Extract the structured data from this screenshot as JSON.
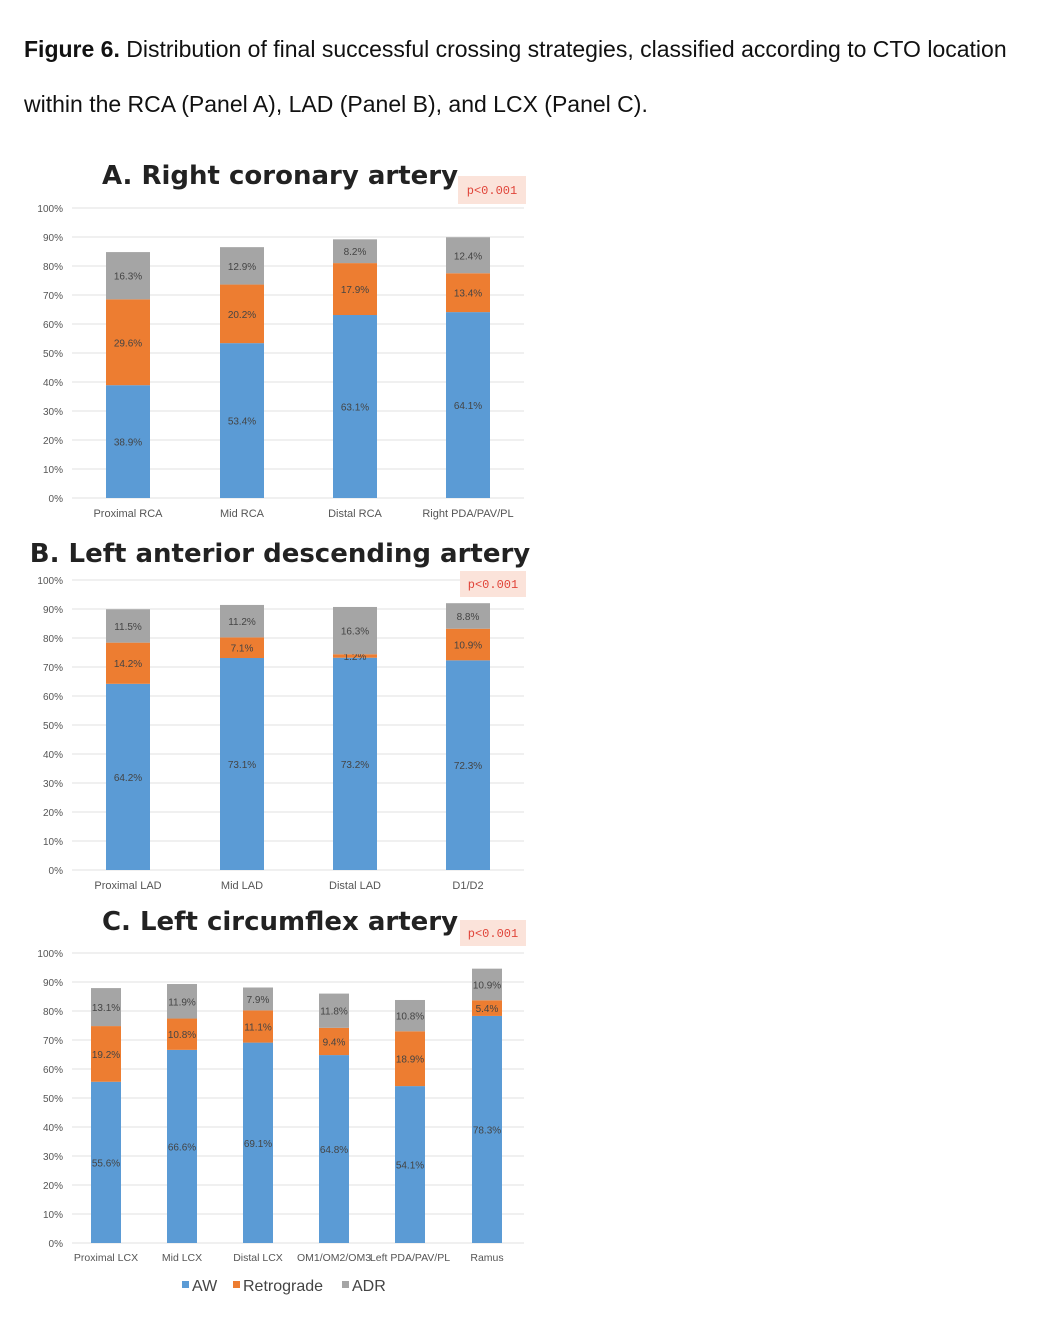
{
  "caption": {
    "label": "Figure 6.",
    "text": " Distribution of final successful crossing strategies, classified according to CTO location within the RCA (Panel A), LAD (Panel B), and LCX (Panel C)."
  },
  "colors": {
    "AW": "#5B9BD5",
    "Retrograde": "#ED7D31",
    "ADR": "#A5A5A5",
    "pbox": "#FBE3DA",
    "pvalue": "#E0453A"
  },
  "legend": [
    {
      "name": "AW",
      "color": "#5B9BD5"
    },
    {
      "name": "Retrograde",
      "color": "#ED7D31"
    },
    {
      "name": "ADR",
      "color": "#A5A5A5"
    }
  ],
  "chart_data": [
    {
      "type": "bar",
      "stacked": true,
      "title": "A. Right coronary artery",
      "pvalue": "p<0.001",
      "ylim": [
        0,
        100
      ],
      "yticks": [
        "0%",
        "10%",
        "20%",
        "30%",
        "40%",
        "50%",
        "60%",
        "70%",
        "80%",
        "90%",
        "100%"
      ],
      "categories": [
        "Proximal RCA",
        "Mid RCA",
        "Distal RCA",
        "Right PDA/PAV/PL"
      ],
      "series": [
        {
          "name": "AW",
          "values": [
            38.9,
            53.4,
            63.1,
            64.1
          ],
          "labels": [
            "38.9%",
            "53.4%",
            "63.1%",
            "64.1%"
          ]
        },
        {
          "name": "Retrograde",
          "values": [
            29.6,
            20.2,
            17.9,
            13.4
          ],
          "labels": [
            "29.6%",
            "20.2%",
            "17.9%",
            "13.4%"
          ]
        },
        {
          "name": "ADR",
          "values": [
            16.3,
            12.9,
            8.2,
            12.4
          ],
          "labels": [
            "16.3%",
            "12.9%",
            "8.2%",
            "12.4%"
          ]
        }
      ]
    },
    {
      "type": "bar",
      "stacked": true,
      "title": "B. Left anterior descending artery",
      "pvalue": "p<0.001",
      "ylim": [
        0,
        100
      ],
      "yticks": [
        "0%",
        "10%",
        "20%",
        "30%",
        "40%",
        "50%",
        "60%",
        "70%",
        "80%",
        "90%",
        "100%"
      ],
      "categories": [
        "Proximal LAD",
        "Mid LAD",
        "Distal LAD",
        "D1/D2"
      ],
      "series": [
        {
          "name": "AW",
          "values": [
            64.2,
            73.1,
            73.2,
            72.3
          ],
          "labels": [
            "64.2%",
            "73.1%",
            "73.2%",
            "72.3%"
          ]
        },
        {
          "name": "Retrograde",
          "values": [
            14.2,
            7.1,
            1.2,
            10.9
          ],
          "labels": [
            "14.2%",
            "7.1%",
            "1.2%",
            "10.9%"
          ]
        },
        {
          "name": "ADR",
          "values": [
            11.5,
            11.2,
            16.3,
            8.8
          ],
          "labels": [
            "11.5%",
            "11.2%",
            "16.3%",
            "8.8%"
          ]
        }
      ]
    },
    {
      "type": "bar",
      "stacked": true,
      "title": "C. Left circumflex artery",
      "pvalue": "p<0.001",
      "ylim": [
        0,
        100
      ],
      "yticks": [
        "0%",
        "10%",
        "20%",
        "30%",
        "40%",
        "50%",
        "60%",
        "70%",
        "80%",
        "90%",
        "100%"
      ],
      "categories": [
        "Proximal LCX",
        "Mid LCX",
        "Distal LCX",
        "OM1/OM2/OM3",
        "Left PDA/PAV/PL",
        "Ramus"
      ],
      "series": [
        {
          "name": "AW",
          "values": [
            55.6,
            66.6,
            69.1,
            64.8,
            54.1,
            78.3
          ],
          "labels": [
            "55.6%",
            "66.6%",
            "69.1%",
            "64.8%",
            "54.1%",
            "78.3%"
          ]
        },
        {
          "name": "Retrograde",
          "values": [
            19.2,
            10.8,
            11.1,
            9.4,
            18.9,
            5.4
          ],
          "labels": [
            "19.2%",
            "10.8%",
            "11.1%",
            "9.4%",
            "18.9%",
            "5.4%"
          ]
        },
        {
          "name": "ADR",
          "values": [
            13.1,
            11.9,
            7.9,
            11.8,
            10.8,
            10.9
          ],
          "labels": [
            "13.1%",
            "11.9%",
            "7.9%",
            "11.8%",
            "10.8%",
            "10.9%"
          ]
        }
      ]
    }
  ]
}
